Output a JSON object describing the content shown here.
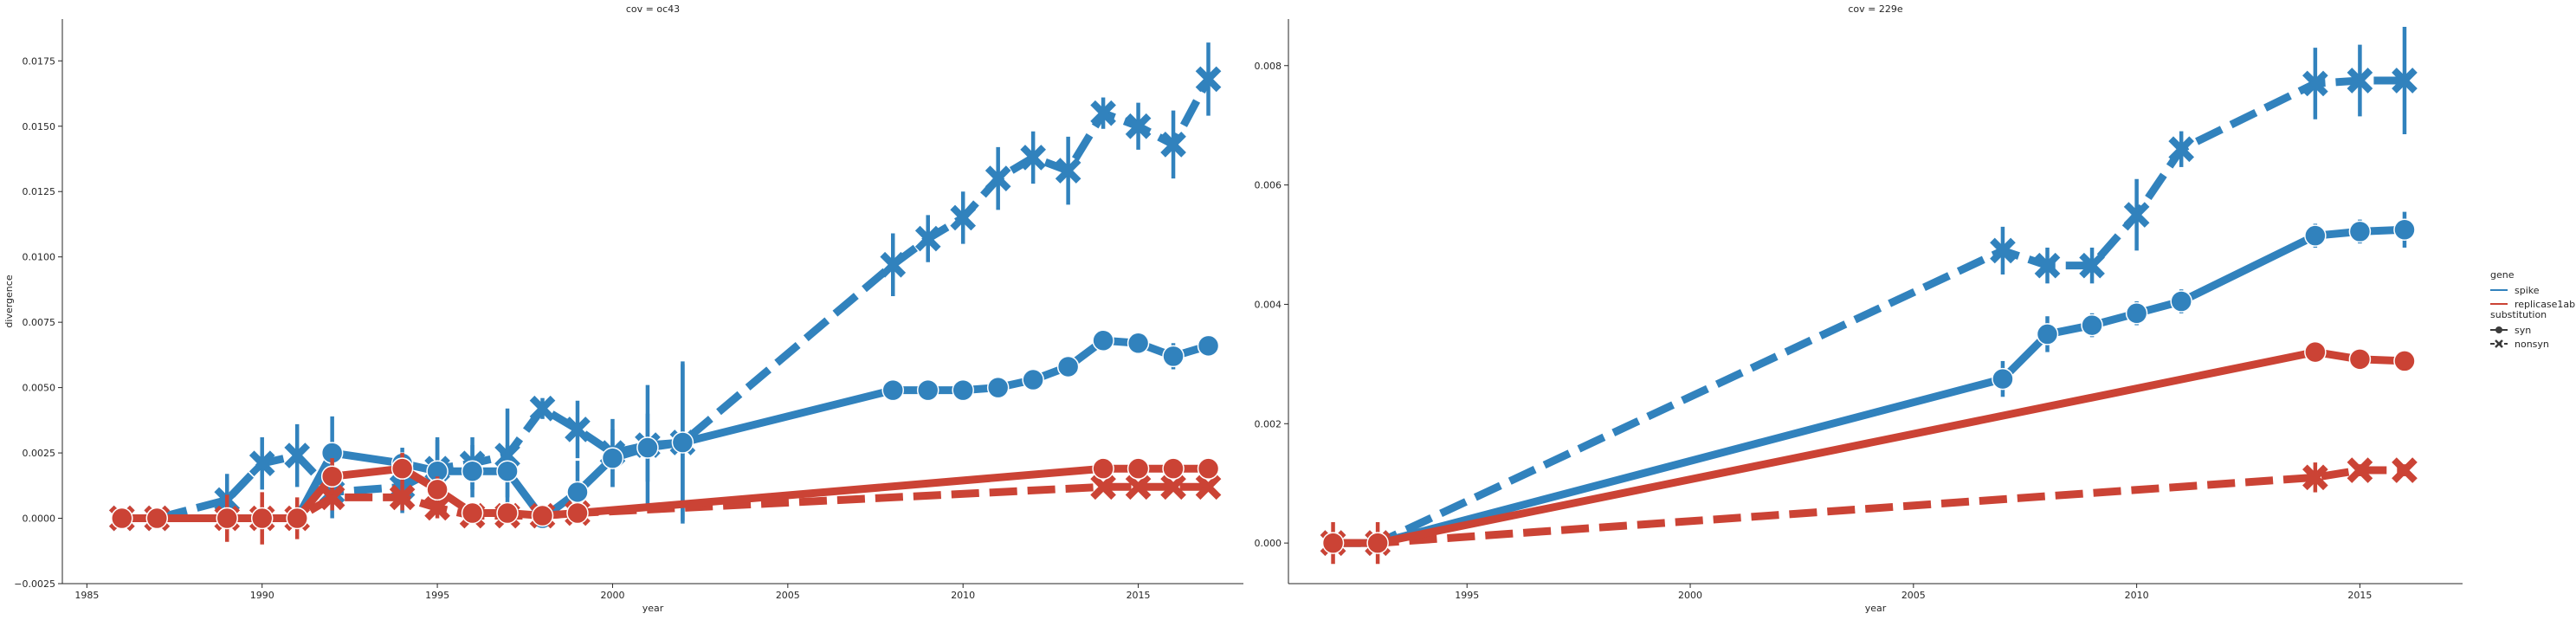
{
  "chart_data": [
    {
      "type": "line",
      "title": "cov = oc43",
      "xlabel": "year",
      "ylabel": "divergence",
      "xlim": [
        1984.3,
        2018.0
      ],
      "ylim": [
        -0.0025,
        0.0191
      ],
      "xticks": [
        1985,
        1990,
        1995,
        2000,
        2005,
        2010,
        2015
      ],
      "xtick_labels": [
        "1985",
        "1990",
        "1995",
        "2000",
        "2005",
        "2010",
        "2015"
      ],
      "yticks": [
        -0.0025,
        0.0,
        0.0025,
        0.005,
        0.0075,
        0.01,
        0.0125,
        0.015,
        0.0175
      ],
      "ytick_labels": [
        "−0.0025",
        "0.0000",
        "0.0025",
        "0.0050",
        "0.0075",
        "0.0100",
        "0.0125",
        "0.0150",
        "0.0175"
      ],
      "grid": false,
      "series": [
        {
          "gene": "spike",
          "substitution": "nonsyn",
          "color": "#3182bd",
          "dashed": true,
          "marker": "x",
          "x": [
            1986,
            1987,
            1989,
            1990,
            1991,
            1992,
            1994,
            1995,
            1996,
            1997,
            1998,
            1999,
            2000,
            2001,
            2002,
            2008,
            2009,
            2010,
            2011,
            2012,
            2013,
            2014,
            2015,
            2016,
            2017
          ],
          "y": [
            0.0,
            0.0,
            0.0007,
            0.0021,
            0.0024,
            0.001,
            0.0012,
            0.0019,
            0.0021,
            0.0024,
            0.0042,
            0.0034,
            0.0025,
            0.0028,
            0.0029,
            0.0097,
            0.0107,
            0.0115,
            0.013,
            0.0138,
            0.0133,
            0.0155,
            0.015,
            0.0143,
            0.0168
          ],
          "err": [
            0.0,
            0.0,
            0.001,
            0.001,
            0.0012,
            0.001,
            0.001,
            0.0012,
            0.001,
            0.0018,
            0.0004,
            0.0011,
            0.0013,
            0.0023,
            0.0031,
            0.0012,
            0.0009,
            0.001,
            0.0012,
            0.001,
            0.0013,
            0.0006,
            0.0009,
            0.0013,
            0.0014
          ]
        },
        {
          "gene": "spike",
          "substitution": "syn",
          "color": "#3182bd",
          "dashed": false,
          "marker": "o",
          "x": [
            1986,
            1987,
            1989,
            1990,
            1991,
            1992,
            1994,
            1995,
            1996,
            1997,
            1998,
            1999,
            2000,
            2001,
            2002,
            2008,
            2009,
            2010,
            2011,
            2012,
            2013,
            2014,
            2015,
            2016,
            2017
          ],
          "y": [
            0.0,
            0.0,
            0.0,
            0.0,
            0.0,
            0.0025,
            0.0021,
            0.0018,
            0.0018,
            0.0018,
            0.0,
            0.001,
            0.0023,
            0.0027,
            0.0029,
            0.0049,
            0.0049,
            0.0049,
            0.005,
            0.0053,
            0.0058,
            0.0068,
            0.0067,
            0.0062,
            0.0066
          ],
          "err": [
            0.0,
            0.0,
            0.0,
            0.0,
            0.0,
            0.0014,
            0.0006,
            0.0012,
            0.001,
            0.001,
            0.0,
            0.0012,
            0.0011,
            0.0013,
            0.003,
            0.0003,
            0.0003,
            0.0003,
            0.0003,
            0.0003,
            0.0004,
            0.0004,
            0.0004,
            0.0005,
            0.0004
          ]
        },
        {
          "gene": "replicase1ab",
          "substitution": "nonsyn",
          "color": "#cb4335",
          "dashed": true,
          "marker": "x",
          "x": [
            1986,
            1987,
            1989,
            1990,
            1991,
            1992,
            1994,
            1995,
            1996,
            1997,
            1998,
            1999,
            2014,
            2015,
            2016,
            2017
          ],
          "y": [
            0.0,
            0.0,
            0.0,
            0.0,
            0.0,
            0.0008,
            0.0008,
            0.0004,
            0.0001,
            0.0001,
            0.0001,
            0.0002,
            0.0012,
            0.0012,
            0.0012,
            0.0012
          ],
          "err": [
            0.0,
            0.0,
            0.0,
            0.0,
            0.0,
            0.0005,
            0.0005,
            0.0004,
            0.0002,
            0.0002,
            0.0002,
            0.0002,
            0.0001,
            0.0001,
            0.0001,
            0.0001
          ]
        },
        {
          "gene": "replicase1ab",
          "substitution": "syn",
          "color": "#cb4335",
          "dashed": false,
          "marker": "o",
          "x": [
            1986,
            1987,
            1989,
            1990,
            1991,
            1992,
            1994,
            1995,
            1996,
            1997,
            1998,
            1999,
            2014,
            2015,
            2016,
            2017
          ],
          "y": [
            0.0,
            0.0,
            0.0,
            0.0,
            0.0,
            0.0016,
            0.0019,
            0.0011,
            0.0002,
            0.0002,
            0.0001,
            0.0002,
            0.0019,
            0.0019,
            0.0019,
            0.0019
          ],
          "err": [
            0.0,
            0.0,
            0.0009,
            0.001,
            0.0008,
            0.0007,
            0.0006,
            0.0005,
            0.0003,
            0.0003,
            0.0003,
            0.0003,
            0.0002,
            0.0002,
            0.0002,
            0.0002
          ]
        }
      ]
    },
    {
      "type": "line",
      "title": "cov = 229e",
      "xlabel": "year",
      "ylabel": "",
      "xlim": [
        1991.0,
        2017.3
      ],
      "ylim": [
        -0.00068,
        0.00878
      ],
      "xticks": [
        1995,
        2000,
        2005,
        2010,
        2015
      ],
      "xtick_labels": [
        "1995",
        "2000",
        "2005",
        "2010",
        "2015"
      ],
      "yticks": [
        0.0,
        0.002,
        0.004,
        0.006,
        0.008
      ],
      "ytick_labels": [
        "0.000",
        "0.002",
        "0.004",
        "0.006",
        "0.008"
      ],
      "grid": false,
      "series": [
        {
          "gene": "spike",
          "substitution": "nonsyn",
          "color": "#3182bd",
          "dashed": true,
          "marker": "x",
          "x": [
            1992,
            1993,
            2007,
            2008,
            2009,
            2010,
            2011,
            2014,
            2015,
            2016
          ],
          "y": [
            0.0,
            0.0,
            0.0049,
            0.00465,
            0.00465,
            0.0055,
            0.0066,
            0.0077,
            0.00775,
            0.00775
          ],
          "err": [
            0.0,
            0.0,
            0.0004,
            0.0003,
            0.0003,
            0.0006,
            0.0003,
            0.0006,
            0.0006,
            0.0009
          ]
        },
        {
          "gene": "spike",
          "substitution": "syn",
          "color": "#3182bd",
          "dashed": false,
          "marker": "o",
          "x": [
            1992,
            1993,
            2007,
            2008,
            2009,
            2010,
            2011,
            2014,
            2015,
            2016
          ],
          "y": [
            0.0,
            0.0,
            0.00275,
            0.0035,
            0.00365,
            0.00385,
            0.00405,
            0.00515,
            0.00522,
            0.00525
          ],
          "err": [
            0.0,
            0.0,
            0.0003,
            0.0003,
            0.0002,
            0.0002,
            0.0002,
            0.0002,
            0.0002,
            0.0003
          ]
        },
        {
          "gene": "replicase1ab",
          "substitution": "nonsyn",
          "color": "#cb4335",
          "dashed": true,
          "marker": "x",
          "x": [
            1992,
            1993,
            2014,
            2015,
            2016
          ],
          "y": [
            0.0,
            0.0,
            0.0011,
            0.00122,
            0.00122
          ],
          "err": [
            0.0,
            0.0,
            0.00025,
            0.0001,
            0.0001
          ]
        },
        {
          "gene": "replicase1ab",
          "substitution": "syn",
          "color": "#cb4335",
          "dashed": false,
          "marker": "o",
          "x": [
            1992,
            1993,
            2014,
            2015,
            2016
          ],
          "y": [
            0.0,
            0.0,
            0.0032,
            0.00308,
            0.00305
          ],
          "err": [
            0.00035,
            0.00035,
            0.0001,
            0.0001,
            0.0001
          ]
        }
      ]
    }
  ],
  "legend": {
    "placement": "right",
    "title_gene": "gene",
    "gene_items": [
      {
        "label": "spike",
        "color": "#3182bd"
      },
      {
        "label": "replicase1ab",
        "color": "#cb4335"
      }
    ],
    "title_substitution": "substitution",
    "substitution_items": [
      {
        "label": "syn",
        "dashed": false,
        "marker": "o"
      },
      {
        "label": "nonsyn",
        "dashed": true,
        "marker": "x"
      }
    ],
    "neutral_color": "#3b3b3b"
  }
}
